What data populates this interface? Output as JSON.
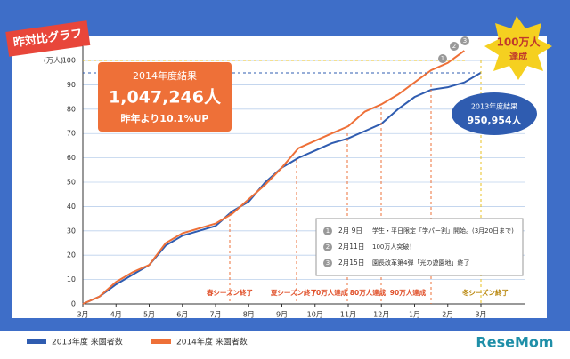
{
  "chart_data": {
    "type": "line",
    "title": "昨対比グラフ",
    "y_label": "(万人)",
    "categories": [
      "3月",
      null,
      "4月",
      null,
      "5月",
      null,
      "6月",
      null,
      "7月",
      null,
      "8月",
      null,
      "9月",
      null,
      "10月",
      null,
      "11月",
      null,
      "12月",
      null,
      "1月",
      null,
      "2月",
      null,
      "3月"
    ],
    "series": [
      {
        "name": "2013年度 来園者数",
        "color": "#2f5cb0",
        "values": [
          0,
          3,
          8,
          12,
          16,
          24,
          28,
          30,
          32,
          38,
          42,
          50,
          56,
          60,
          63,
          66,
          68,
          71,
          74,
          80,
          85,
          88,
          89,
          91,
          95
        ]
      },
      {
        "name": "2014年度 来園者数",
        "color": "#ee7038",
        "values": [
          0,
          3,
          9,
          13,
          16,
          25,
          29,
          31,
          33,
          37,
          43,
          49,
          56,
          64,
          67,
          70,
          73,
          79,
          82,
          86,
          91,
          96,
          99,
          104,
          null
        ]
      }
    ],
    "ylim": [
      0,
      106
    ],
    "yticks": [
      0,
      10,
      20,
      30,
      40,
      50,
      60,
      70,
      80,
      90,
      100
    ],
    "grid": true,
    "callout_2014": {
      "title": "2014年度結果",
      "total": "1,047,246人",
      "growth": "昨年より10.1%UP"
    },
    "callout_2013": {
      "title": "2013年度結果",
      "total": "950,954人"
    },
    "milestone": {
      "line1": "100万人",
      "line2": "達成"
    },
    "events": [
      "春シーズン終了",
      "夏シーズン終了",
      "70万人達成",
      "80万人達成",
      "90万人達成",
      "冬シーズン終了"
    ],
    "notes": [
      {
        "number": "1",
        "date": "2月 9日",
        "text": "学生・平日限定「学パー割」開始。(3月20日まで)"
      },
      {
        "number": "2",
        "date": "2月11日",
        "text": "100万人突破！"
      },
      {
        "number": "3",
        "date": "2月15日",
        "text": "園長改革第4弾「光の遊園地」終了"
      }
    ],
    "watermark": "ReseMom"
  }
}
